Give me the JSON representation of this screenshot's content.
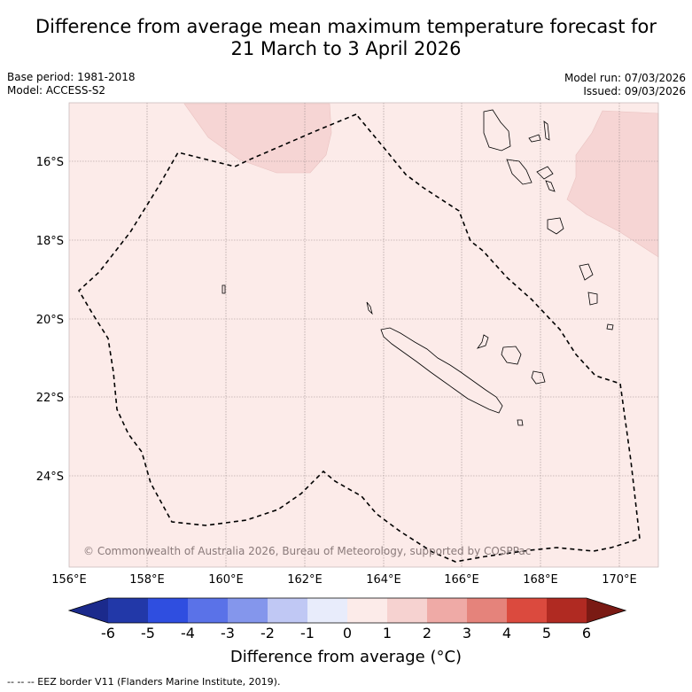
{
  "title_line1": "Difference from average mean maximum temperature forecast for",
  "title_line2": "21 March to 3 April 2026",
  "base_period": "Base period: 1981-2018",
  "model": "Model: ACCESS-S2",
  "model_run": "Model run: 07/03/2026",
  "issued": "Issued: 09/03/2026",
  "copyright": "© Commonwealth of Australia 2026, Bureau of Meteorology, supported by COSPPac",
  "lon_ticks": [
    "156°E",
    "158°E",
    "160°E",
    "162°E",
    "164°E",
    "166°E",
    "168°E",
    "170°E"
  ],
  "lat_ticks": [
    "16°S",
    "18°S",
    "20°S",
    "22°S",
    "24°S"
  ],
  "colorbar": {
    "label": "Difference from average (°C)",
    "ticks": [
      "-6",
      "-5",
      "-4",
      "-3",
      "-2",
      "-1",
      "0",
      "1",
      "2",
      "3",
      "4",
      "5",
      "6"
    ],
    "colors": [
      "#1b2a8c",
      "#2238a8",
      "#2f4ee0",
      "#5a72e8",
      "#8496ec",
      "#c0c8f4",
      "#e8ecfb",
      "#fcebe9",
      "#f6d2d0",
      "#efaaa6",
      "#e5837b",
      "#db4a3e",
      "#b02a22",
      "#7a1a14"
    ]
  },
  "map_colors": {
    "bg": "#fcebe9",
    "warm": "#f6d5d4"
  },
  "eez_legend": "--  --  -- EEZ border V11 (Flanders Marine Institute, 2019)."
}
